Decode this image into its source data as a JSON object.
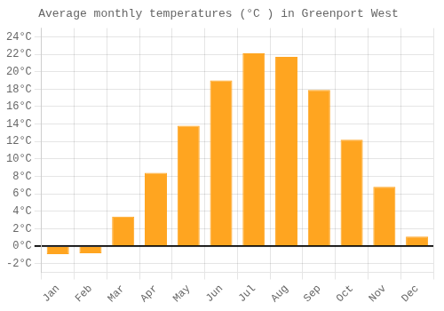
{
  "chart_data": {
    "type": "bar",
    "title": "Average monthly temperatures (°C ) in Greenport West",
    "categories": [
      "Jan",
      "Feb",
      "Mar",
      "Apr",
      "May",
      "Jun",
      "Jul",
      "Aug",
      "Sep",
      "Oct",
      "Nov",
      "Dec"
    ],
    "values": [
      -0.9,
      -0.8,
      3.4,
      8.4,
      13.8,
      19.0,
      22.1,
      21.7,
      17.9,
      12.2,
      6.8,
      1.1
    ],
    "color": "#FFA520",
    "ylim": [
      -3,
      25
    ],
    "yticks": [
      {
        "value": -2,
        "label": "-2°C"
      },
      {
        "value": 0,
        "label": "0°C"
      },
      {
        "value": 2,
        "label": "2°C"
      },
      {
        "value": 4,
        "label": "4°C"
      },
      {
        "value": 6,
        "label": "6°C"
      },
      {
        "value": 8,
        "label": "8°C"
      },
      {
        "value": 10,
        "label": "10°C"
      },
      {
        "value": 12,
        "label": "12°C"
      },
      {
        "value": 14,
        "label": "14°C"
      },
      {
        "value": 16,
        "label": "16°C"
      },
      {
        "value": 18,
        "label": "18°C"
      },
      {
        "value": 20,
        "label": "20°C"
      },
      {
        "value": 22,
        "label": "22°C"
      },
      {
        "value": 24,
        "label": "24°C"
      }
    ],
    "grid": true
  }
}
